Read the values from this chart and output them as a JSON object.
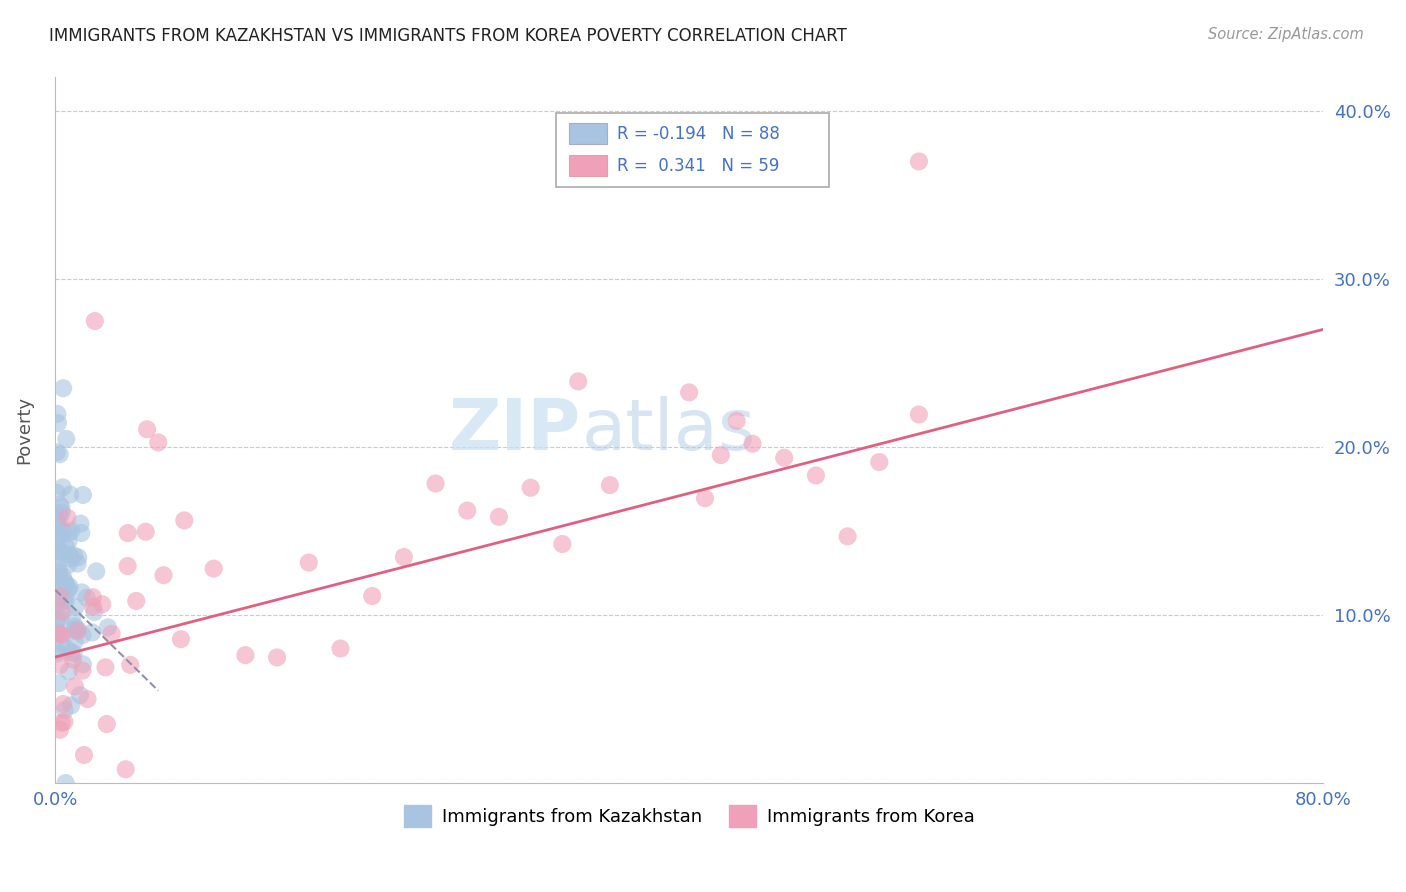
{
  "title": "IMMIGRANTS FROM KAZAKHSTAN VS IMMIGRANTS FROM KOREA POVERTY CORRELATION CHART",
  "source": "Source: ZipAtlas.com",
  "ylabel": "Poverty",
  "xlim": [
    0,
    0.8
  ],
  "ylim": [
    0,
    0.42
  ],
  "yticks": [
    0.0,
    0.1,
    0.2,
    0.3,
    0.4
  ],
  "ytick_labels": [
    "",
    "10.0%",
    "20.0%",
    "30.0%",
    "40.0%"
  ],
  "xticks": [
    0.0,
    0.2,
    0.4,
    0.6,
    0.8
  ],
  "xtick_labels": [
    "0.0%",
    "",
    "",
    "",
    "80.0%"
  ],
  "kazakhstan_R": -0.194,
  "kazakhstan_N": 88,
  "korea_R": 0.341,
  "korea_N": 59,
  "kazakhstan_color": "#a8c4e0",
  "korea_color": "#f0a0b8",
  "trendline_kazakhstan_color": "#9090a8",
  "trendline_korea_color": "#e06080",
  "axis_color": "#4472c4",
  "grid_color": "#cccccc",
  "korea_trendline_x0": 0.0,
  "korea_trendline_y0": 0.075,
  "korea_trendline_x1": 0.8,
  "korea_trendline_y1": 0.27,
  "kaz_trendline_x0": 0.0,
  "kaz_trendline_y0": 0.115,
  "kaz_trendline_x1": 0.065,
  "kaz_trendline_y1": 0.055
}
